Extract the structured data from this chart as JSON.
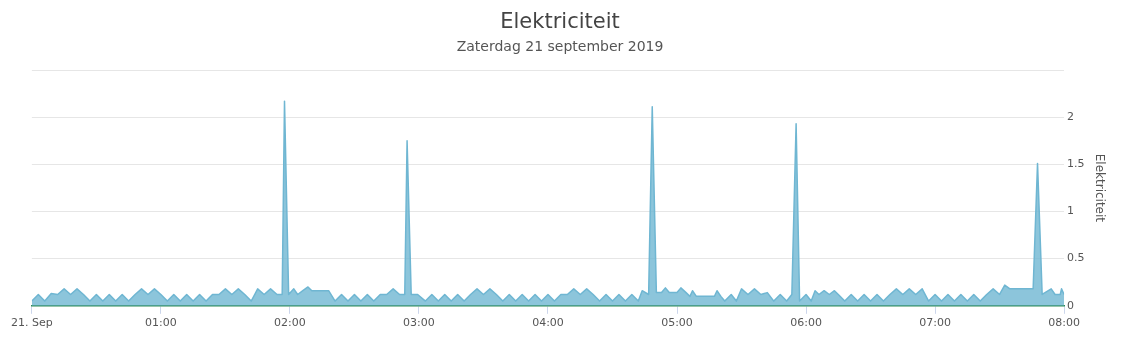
{
  "chart_data": {
    "type": "area",
    "title": "Elektriciteit",
    "subtitle": "Zaterdag 21 september 2019",
    "ylabel": "Elektriciteit",
    "xlim": [
      0,
      8
    ],
    "xticks": [
      {
        "value": 0,
        "label": "21. Sep"
      },
      {
        "value": 1,
        "label": "01:00"
      },
      {
        "value": 2,
        "label": "02:00"
      },
      {
        "value": 3,
        "label": "03:00"
      },
      {
        "value": 4,
        "label": "04:00"
      },
      {
        "value": 5,
        "label": "05:00"
      },
      {
        "value": 6,
        "label": "06:00"
      },
      {
        "value": 7,
        "label": "07:00"
      },
      {
        "value": 8,
        "label": "08:00"
      }
    ],
    "ylim": [
      0,
      2.5
    ],
    "yticks": [
      0,
      0.5,
      1,
      1.5,
      2,
      {
        "value": 2.5,
        "label": null
      }
    ],
    "grid": "y",
    "legend": false,
    "marker": "none",
    "line_style": "solid",
    "series": [
      {
        "color": "#6fb6d2",
        "x": [
          0,
          0.05,
          0.1,
          0.15,
          0.2,
          0.25,
          0.3,
          0.35,
          0.4,
          0.45,
          0.5,
          0.55,
          0.6,
          0.65,
          0.7,
          0.75,
          0.8,
          0.85,
          0.9,
          0.95,
          1.0,
          1.05,
          1.1,
          1.15,
          1.2,
          1.25,
          1.3,
          1.35,
          1.4,
          1.45,
          1.5,
          1.55,
          1.6,
          1.65,
          1.7,
          1.75,
          1.8,
          1.85,
          1.9,
          1.94,
          1.958,
          1.99,
          2.03,
          2.06,
          2.1,
          2.14,
          2.17,
          2.3,
          2.35,
          2.4,
          2.45,
          2.5,
          2.55,
          2.6,
          2.65,
          2.7,
          2.75,
          2.8,
          2.85,
          2.89,
          2.908,
          2.94,
          2.99,
          3.05,
          3.1,
          3.15,
          3.2,
          3.25,
          3.3,
          3.35,
          3.4,
          3.45,
          3.5,
          3.55,
          3.6,
          3.65,
          3.7,
          3.75,
          3.8,
          3.85,
          3.9,
          3.95,
          4.0,
          4.05,
          4.1,
          4.15,
          4.2,
          4.25,
          4.3,
          4.35,
          4.4,
          4.45,
          4.5,
          4.55,
          4.6,
          4.65,
          4.7,
          4.73,
          4.78,
          4.808,
          4.84,
          4.88,
          4.91,
          4.94,
          5.0,
          5.03,
          5.07,
          5.1,
          5.12,
          5.15,
          5.29,
          5.31,
          5.34,
          5.37,
          5.42,
          5.46,
          5.5,
          5.55,
          5.6,
          5.65,
          5.7,
          5.75,
          5.8,
          5.85,
          5.89,
          5.923,
          5.95,
          6.0,
          6.04,
          6.07,
          6.1,
          6.14,
          6.18,
          6.22,
          6.25,
          6.3,
          6.35,
          6.4,
          6.45,
          6.5,
          6.55,
          6.6,
          6.65,
          6.7,
          6.75,
          6.8,
          6.85,
          6.9,
          6.95,
          7.0,
          7.05,
          7.1,
          7.15,
          7.2,
          7.25,
          7.3,
          7.35,
          7.4,
          7.45,
          7.5,
          7.54,
          7.58,
          7.76,
          7.794,
          7.83,
          7.9,
          7.93,
          7.97,
          7.98,
          8.0
        ],
        "values": [
          0.05,
          0.12,
          0.05,
          0.13,
          0.12,
          0.18,
          0.12,
          0.18,
          0.12,
          0.05,
          0.12,
          0.05,
          0.12,
          0.05,
          0.12,
          0.05,
          0.12,
          0.18,
          0.12,
          0.18,
          0.12,
          0.05,
          0.12,
          0.05,
          0.12,
          0.05,
          0.12,
          0.05,
          0.12,
          0.12,
          0.18,
          0.12,
          0.18,
          0.12,
          0.05,
          0.18,
          0.12,
          0.18,
          0.12,
          0.12,
          2.17,
          0.12,
          0.18,
          0.12,
          0.16,
          0.2,
          0.16,
          0.16,
          0.05,
          0.12,
          0.05,
          0.12,
          0.05,
          0.12,
          0.05,
          0.12,
          0.12,
          0.18,
          0.12,
          0.12,
          1.75,
          0.12,
          0.12,
          0.05,
          0.12,
          0.05,
          0.12,
          0.05,
          0.12,
          0.05,
          0.12,
          0.18,
          0.12,
          0.18,
          0.12,
          0.05,
          0.12,
          0.05,
          0.12,
          0.05,
          0.12,
          0.05,
          0.12,
          0.05,
          0.12,
          0.12,
          0.18,
          0.12,
          0.18,
          0.12,
          0.05,
          0.12,
          0.05,
          0.12,
          0.05,
          0.12,
          0.05,
          0.16,
          0.12,
          2.11,
          0.14,
          0.14,
          0.19,
          0.14,
          0.14,
          0.19,
          0.14,
          0.1,
          0.16,
          0.1,
          0.1,
          0.16,
          0.1,
          0.05,
          0.12,
          0.05,
          0.18,
          0.12,
          0.18,
          0.12,
          0.14,
          0.05,
          0.12,
          0.05,
          0.12,
          1.93,
          0.05,
          0.12,
          0.05,
          0.16,
          0.12,
          0.16,
          0.12,
          0.16,
          0.12,
          0.05,
          0.12,
          0.05,
          0.12,
          0.05,
          0.12,
          0.05,
          0.12,
          0.18,
          0.12,
          0.18,
          0.12,
          0.18,
          0.05,
          0.12,
          0.05,
          0.12,
          0.05,
          0.12,
          0.05,
          0.12,
          0.05,
          0.12,
          0.18,
          0.12,
          0.22,
          0.18,
          0.18,
          1.51,
          0.12,
          0.18,
          0.12,
          0.12,
          0.18,
          0.12
        ]
      }
    ]
  }
}
